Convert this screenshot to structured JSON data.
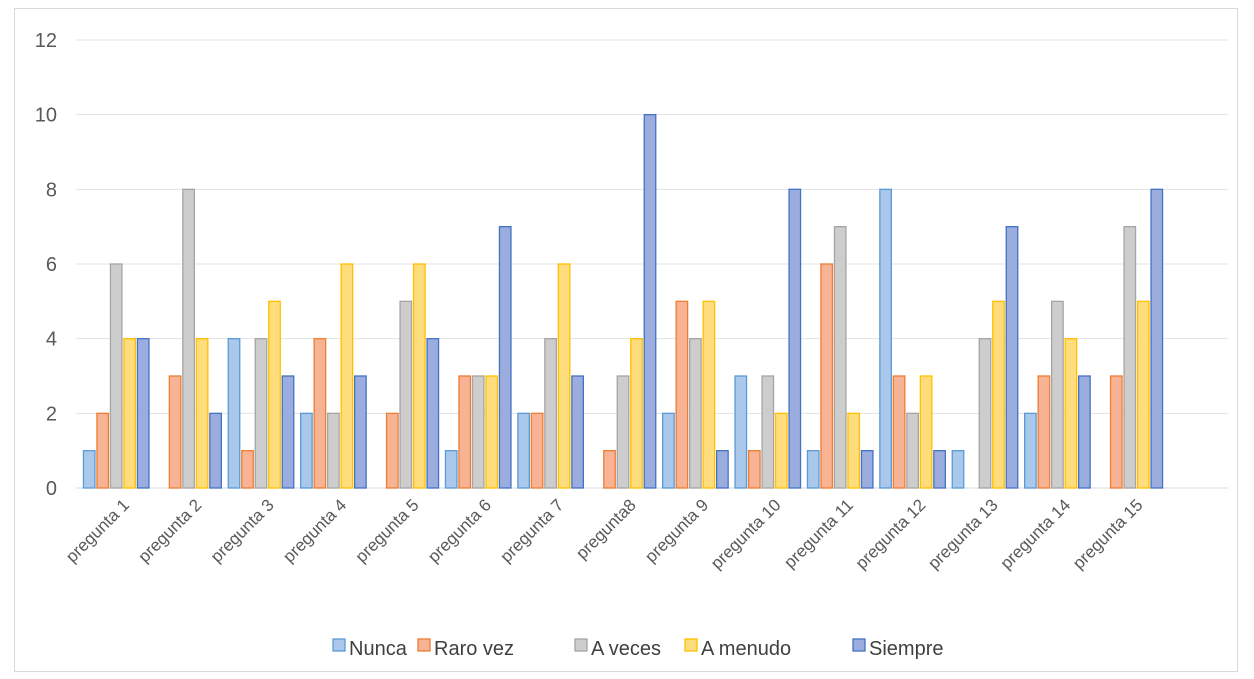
{
  "chart_data": {
    "type": "bar",
    "title": "",
    "xlabel": "",
    "ylabel": "",
    "ylim": [
      0,
      12
    ],
    "yticks": [
      0,
      2,
      4,
      6,
      8,
      10,
      12
    ],
    "grid": true,
    "legend_position": "bottom",
    "categories": [
      "pregunta 1",
      "pregunta  2",
      "pregunta 3",
      "pregunta 4",
      "pregunta 5",
      "pregunta 6",
      "pregunta 7",
      "pregunta8",
      "pregunta 9",
      "pregunta 10",
      "pregunta 11",
      "pregunta 12",
      "pregunta 13",
      "pregunta 14",
      "pregunta 15"
    ],
    "series": [
      {
        "name": "Nunca",
        "fill": "#a9c8ec",
        "stroke": "#5b9bd5",
        "values": [
          1,
          0,
          4,
          2,
          0,
          1,
          2,
          0,
          2,
          3,
          1,
          8,
          1,
          2,
          0
        ]
      },
      {
        "name": "Raro vez",
        "fill": "#f7b394",
        "stroke": "#ed7d31",
        "values": [
          2,
          3,
          1,
          4,
          2,
          3,
          2,
          1,
          5,
          1,
          6,
          3,
          0,
          3,
          3
        ]
      },
      {
        "name": "A veces",
        "fill": "#cdcdcd",
        "stroke": "#a5a5a5",
        "values": [
          6,
          8,
          4,
          2,
          5,
          3,
          4,
          3,
          4,
          3,
          7,
          2,
          4,
          5,
          7
        ]
      },
      {
        "name": "A menudo",
        "fill": "#ffdc7c",
        "stroke": "#ffc000",
        "values": [
          4,
          4,
          5,
          6,
          6,
          3,
          6,
          4,
          5,
          2,
          2,
          3,
          5,
          4,
          5
        ]
      },
      {
        "name": "Siempre",
        "fill": "#9badde",
        "stroke": "#4472c4",
        "values": [
          4,
          2,
          3,
          3,
          4,
          7,
          3,
          10,
          1,
          8,
          1,
          1,
          7,
          3,
          8
        ]
      }
    ]
  }
}
